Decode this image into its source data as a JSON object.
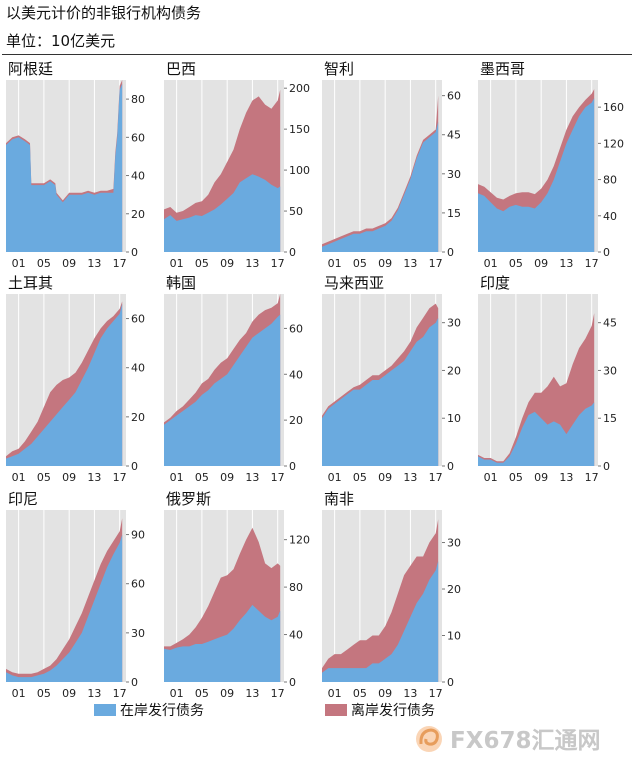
{
  "header": {
    "title": "以美元计价的非银行机构债务",
    "subtitle": "单位：10亿美元"
  },
  "legend": {
    "onshore_label": "在岸发行债务",
    "offshore_label": "离岸发行债务"
  },
  "colors": {
    "onshore": "#6aaadf",
    "offshore": "#c4767f",
    "plot_bg": "#e3e3e3"
  },
  "watermark": {
    "text": "FX678汇通网",
    "icon": "fx678-swirl-icon"
  },
  "chart_data": [
    {
      "type": "area",
      "title": "阿根廷",
      "ymax": 90,
      "yticks": [
        0,
        20,
        40,
        60,
        80
      ],
      "xticks": [
        "01",
        "05",
        "09",
        "13",
        "17"
      ],
      "x": [
        1999,
        2000,
        2001,
        2002,
        2002.8,
        2003,
        2004,
        2005,
        2006,
        2006.8,
        2007,
        2008,
        2009,
        2010,
        2011,
        2012,
        2013,
        2014,
        2015,
        2016,
        2016.3,
        2016.6,
        2017,
        2017.4
      ],
      "series": [
        {
          "name": "在岸发行债务",
          "values": [
            56,
            59,
            60,
            58,
            56,
            35,
            35,
            35,
            37,
            35,
            30,
            26,
            30,
            30,
            30,
            31,
            30,
            31,
            31,
            31,
            50,
            60,
            85,
            88
          ]
        },
        {
          "name": "离岸发行债务",
          "values": [
            57,
            60,
            61,
            59,
            57,
            36,
            36,
            36,
            38,
            36,
            31,
            27,
            31,
            31,
            31,
            32,
            31,
            32,
            32,
            33,
            52,
            62,
            87,
            90
          ]
        }
      ]
    },
    {
      "type": "area",
      "title": "巴西",
      "ymax": 210,
      "yticks": [
        0,
        50,
        100,
        150,
        200
      ],
      "xticks": [
        "01",
        "05",
        "09",
        "13",
        "17"
      ],
      "x": [
        1999,
        2000,
        2001,
        2002,
        2003,
        2004,
        2005,
        2006,
        2007,
        2008,
        2009,
        2010,
        2011,
        2012,
        2013,
        2014,
        2015,
        2016,
        2017,
        2017.4
      ],
      "series": [
        {
          "name": "在岸发行债务",
          "values": [
            40,
            45,
            38,
            40,
            42,
            45,
            44,
            48,
            52,
            58,
            65,
            72,
            85,
            90,
            95,
            92,
            88,
            82,
            78,
            80
          ]
        },
        {
          "name": "离岸发行债务",
          "values": [
            52,
            55,
            48,
            50,
            55,
            60,
            62,
            70,
            85,
            95,
            110,
            125,
            150,
            170,
            185,
            190,
            180,
            175,
            185,
            198
          ]
        }
      ]
    },
    {
      "type": "area",
      "title": "智利",
      "ymax": 66,
      "yticks": [
        0,
        15,
        30,
        45,
        60
      ],
      "xticks": [
        "01",
        "05",
        "09",
        "13",
        "17"
      ],
      "x": [
        1999,
        2000,
        2001,
        2002,
        2003,
        2004,
        2005,
        2006,
        2007,
        2008,
        2009,
        2010,
        2011,
        2012,
        2013,
        2014,
        2015,
        2016,
        2017,
        2017.4
      ],
      "series": [
        {
          "name": "在岸发行债务",
          "values": [
            2,
            3,
            4,
            5,
            6,
            7,
            7,
            8,
            8,
            9,
            10,
            12,
            16,
            22,
            28,
            36,
            42,
            44,
            46,
            50
          ]
        },
        {
          "name": "离岸发行债务",
          "values": [
            3,
            4,
            5,
            6,
            7,
            8,
            8,
            9,
            9,
            10,
            11,
            13,
            17,
            23,
            29,
            37,
            43,
            45,
            47,
            60
          ]
        }
      ]
    },
    {
      "type": "area",
      "title": "墨西哥",
      "ymax": 190,
      "yticks": [
        0,
        40,
        80,
        120,
        160
      ],
      "xticks": [
        "01",
        "05",
        "09",
        "13",
        "17"
      ],
      "x": [
        1999,
        2000,
        2001,
        2002,
        2003,
        2004,
        2005,
        2006,
        2007,
        2008,
        2009,
        2010,
        2011,
        2012,
        2013,
        2014,
        2015,
        2016,
        2017,
        2017.4
      ],
      "series": [
        {
          "name": "在岸发行债务",
          "values": [
            65,
            62,
            55,
            48,
            45,
            50,
            52,
            50,
            50,
            48,
            55,
            65,
            80,
            100,
            120,
            135,
            150,
            160,
            165,
            170
          ]
        },
        {
          "name": "离岸发行债务",
          "values": [
            75,
            72,
            66,
            60,
            58,
            62,
            65,
            66,
            66,
            64,
            70,
            80,
            95,
            115,
            135,
            150,
            160,
            168,
            175,
            180
          ]
        }
      ]
    },
    {
      "type": "area",
      "title": "土耳其",
      "ymax": 70,
      "yticks": [
        0,
        20,
        40,
        60
      ],
      "xticks": [
        "01",
        "05",
        "09",
        "13",
        "17"
      ],
      "x": [
        1999,
        2000,
        2001,
        2002,
        2003,
        2004,
        2005,
        2006,
        2007,
        2008,
        2009,
        2010,
        2011,
        2012,
        2013,
        2014,
        2015,
        2016,
        2017,
        2017.4
      ],
      "series": [
        {
          "name": "在岸发行债务",
          "values": [
            3,
            4,
            5,
            7,
            9,
            12,
            15,
            18,
            21,
            24,
            27,
            30,
            35,
            40,
            46,
            52,
            56,
            59,
            62,
            66
          ]
        },
        {
          "name": "离岸发行债务",
          "values": [
            4,
            6,
            7,
            10,
            14,
            18,
            24,
            30,
            33,
            35,
            36,
            38,
            42,
            47,
            52,
            56,
            59,
            61,
            64,
            67
          ]
        }
      ]
    },
    {
      "type": "area",
      "title": "韩国",
      "ymax": 75,
      "yticks": [
        0,
        20,
        40,
        60
      ],
      "xticks": [
        "01",
        "05",
        "09",
        "13",
        "17"
      ],
      "x": [
        1999,
        2000,
        2001,
        2002,
        2003,
        2004,
        2005,
        2006,
        2007,
        2008,
        2009,
        2010,
        2011,
        2012,
        2013,
        2014,
        2015,
        2016,
        2017,
        2017.4
      ],
      "series": [
        {
          "name": "在岸发行债务",
          "values": [
            18,
            20,
            22,
            24,
            26,
            28,
            31,
            33,
            36,
            38,
            40,
            44,
            48,
            52,
            56,
            58,
            60,
            62,
            65,
            66
          ]
        },
        {
          "name": "离岸发行债务",
          "values": [
            19,
            21,
            24,
            26,
            29,
            32,
            36,
            38,
            42,
            45,
            47,
            51,
            55,
            58,
            63,
            66,
            68,
            69,
            71,
            75
          ]
        }
      ]
    },
    {
      "type": "area",
      "title": "马来西亚",
      "ymax": 36,
      "yticks": [
        0,
        10,
        20,
        30
      ],
      "xticks": [
        "01",
        "05",
        "09",
        "13",
        "17"
      ],
      "x": [
        1999,
        2000,
        2001,
        2002,
        2003,
        2004,
        2005,
        2006,
        2007,
        2008,
        2009,
        2010,
        2011,
        2012,
        2013,
        2014,
        2015,
        2016,
        2017,
        2017.4
      ],
      "series": [
        {
          "name": "在岸发行债务",
          "values": [
            10,
            12,
            13,
            14,
            15,
            16,
            16,
            17,
            18,
            18,
            19,
            20,
            21,
            22,
            24,
            26,
            27,
            29,
            30,
            31
          ]
        },
        {
          "name": "离岸发行债务",
          "values": [
            10.5,
            12.5,
            13.5,
            14.5,
            15.5,
            16.5,
            17,
            18,
            19,
            19,
            20,
            21,
            22.5,
            24,
            26,
            29,
            31,
            33,
            34,
            33
          ]
        }
      ]
    },
    {
      "type": "area",
      "title": "印度",
      "ymax": 54,
      "yticks": [
        0,
        15,
        30,
        45
      ],
      "xticks": [
        "01",
        "05",
        "09",
        "13",
        "17"
      ],
      "x": [
        1999,
        2000,
        2001,
        2002,
        2003,
        2004,
        2005,
        2006,
        2007,
        2008,
        2009,
        2010,
        2011,
        2012,
        2013,
        2014,
        2015,
        2016,
        2017,
        2017.4
      ],
      "series": [
        {
          "name": "在岸发行债务",
          "values": [
            3,
            2,
            2,
            1,
            1,
            3,
            7,
            12,
            16,
            17,
            15,
            13,
            14,
            13,
            10,
            13,
            16,
            18,
            19,
            20
          ]
        },
        {
          "name": "离岸发行债务",
          "values": [
            3.5,
            2.5,
            2.5,
            1.5,
            1.5,
            4,
            9,
            15,
            20,
            23,
            23,
            25,
            28,
            25,
            26,
            32,
            37,
            40,
            44,
            48
          ]
        }
      ]
    },
    {
      "type": "area",
      "title": "印尼",
      "ymax": 105,
      "yticks": [
        0,
        30,
        60,
        90
      ],
      "xticks": [
        "01",
        "05",
        "09",
        "13",
        "17"
      ],
      "x": [
        1999,
        2000,
        2001,
        2002,
        2003,
        2004,
        2005,
        2006,
        2007,
        2008,
        2009,
        2010,
        2011,
        2012,
        2013,
        2014,
        2015,
        2016,
        2017,
        2017.4
      ],
      "series": [
        {
          "name": "在岸发行债务",
          "values": [
            6,
            4,
            3,
            3,
            3,
            4,
            5,
            7,
            10,
            14,
            18,
            24,
            30,
            40,
            50,
            60,
            70,
            78,
            85,
            90
          ]
        },
        {
          "name": "离岸发行债务",
          "values": [
            8,
            6,
            5,
            5,
            5,
            6,
            8,
            10,
            14,
            20,
            26,
            34,
            42,
            52,
            62,
            72,
            80,
            86,
            92,
            100
          ]
        }
      ]
    },
    {
      "type": "area",
      "title": "俄罗斯",
      "ymax": 145,
      "yticks": [
        0,
        40,
        80,
        120
      ],
      "xticks": [
        "01",
        "05",
        "09",
        "13",
        "17"
      ],
      "x": [
        1999,
        2000,
        2001,
        2002,
        2003,
        2004,
        2005,
        2006,
        2007,
        2008,
        2009,
        2010,
        2011,
        2012,
        2013,
        2014,
        2015,
        2016,
        2017,
        2017.4
      ],
      "series": [
        {
          "name": "在岸发行债务",
          "values": [
            28,
            27,
            29,
            30,
            30,
            32,
            32,
            34,
            36,
            38,
            40,
            45,
            52,
            58,
            65,
            60,
            55,
            52,
            55,
            60
          ]
        },
        {
          "name": "离岸发行债务",
          "values": [
            30,
            30,
            33,
            36,
            40,
            46,
            54,
            64,
            76,
            88,
            90,
            95,
            108,
            120,
            130,
            118,
            100,
            96,
            100,
            98
          ]
        }
      ]
    },
    {
      "type": "area",
      "title": "南非",
      "ymax": 37,
      "yticks": [
        0,
        10,
        20,
        30
      ],
      "xticks": [
        "01",
        "05",
        "09",
        "13",
        "17"
      ],
      "x": [
        1999,
        2000,
        2001,
        2002,
        2003,
        2004,
        2005,
        2006,
        2007,
        2008,
        2009,
        2010,
        2011,
        2012,
        2013,
        2014,
        2015,
        2016,
        2017,
        2017.4
      ],
      "series": [
        {
          "name": "在岸发行债务",
          "values": [
            2,
            3,
            3,
            3,
            3,
            3,
            3,
            3,
            4,
            4,
            5,
            6,
            8,
            11,
            14,
            17,
            19,
            22,
            24,
            26
          ]
        },
        {
          "name": "离岸发行债务",
          "values": [
            3,
            5,
            6,
            6,
            7,
            8,
            9,
            9,
            10,
            10,
            12,
            15,
            19,
            23,
            25,
            27,
            27,
            30,
            32,
            35
          ]
        }
      ]
    }
  ]
}
